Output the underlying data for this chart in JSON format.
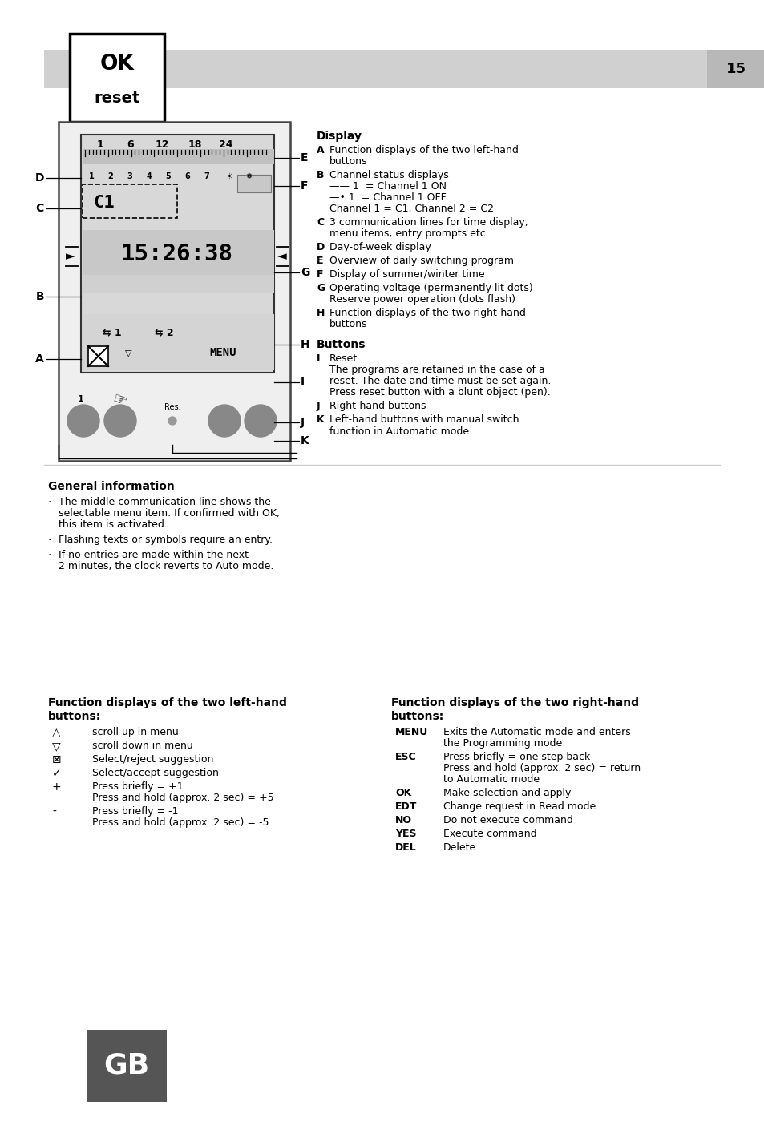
{
  "page_number": "15",
  "bg_color": "#ffffff",
  "header_box_text_line1": "OK",
  "header_box_text_line2": "reset",
  "header_bar_color": "#d0d0d0",
  "gb_box_color": "#555555",
  "gb_text": "GB",
  "display_section": {
    "numbers_top": [
      "1",
      "6",
      "12",
      "18",
      "24"
    ],
    "day_labels": [
      "1",
      "2",
      "3",
      "4",
      "5",
      "6",
      "7"
    ],
    "sun_symbol": "☀",
    "snow_symbol": "*",
    "channel": "C1",
    "time": "15:26:38",
    "menu_text": "MENU",
    "res_label": "Res."
  },
  "display_items": [
    [
      "A",
      "Function displays of the two left-hand\nbuttons"
    ],
    [
      "B",
      "Channel status displays\n—— 1  = Channel 1 ON\n—• 1  = Channel 1 OFF\nChannel 1 = C1, Channel 2 = C2"
    ],
    [
      "C",
      "3 communication lines for time display,\nmenu items, entry prompts etc."
    ],
    [
      "D",
      "Day-of-week display"
    ],
    [
      "E",
      "Overview of daily switching program"
    ],
    [
      "F",
      "Display of summer/winter time"
    ],
    [
      "G",
      "Operating voltage (permanently lit dots)\nReserve power operation (dots flash)"
    ],
    [
      "H",
      "Function displays of the two right-hand\nbuttons"
    ]
  ],
  "buttons_items": [
    [
      "I",
      "Reset",
      "The programs are retained in the case of a\nreset. The date and time must be set again.\nPress reset button with a blunt object (pen)."
    ],
    [
      "J",
      "Right-hand buttons",
      ""
    ],
    [
      "K",
      "Left-hand buttons with manual switch\nfunction in Automatic mode",
      ""
    ]
  ],
  "general_info_title": "General information",
  "general_info_bullets": [
    "The middle communication line shows the\nselectable menu item. If confirmed with OK,\nthis item is activated.",
    "Flashing texts or symbols require an entry.",
    "If no entries are made within the next\n2 minutes, the clock reverts to Auto mode."
  ],
  "left_buttons_title1": "Function displays of the two left-hand",
  "left_buttons_title2": "buttons:",
  "left_buttons_items": [
    [
      "△",
      "scroll up in menu"
    ],
    [
      "▽",
      "scroll down in menu"
    ],
    [
      "⊠",
      "Select/reject suggestion"
    ],
    [
      "✓",
      "Select/accept suggestion"
    ],
    [
      "+",
      "Press briefly = +1\nPress and hold (approx. 2 sec) = +5"
    ],
    [
      "-",
      "Press briefly = -1\nPress and hold (approx. 2 sec) = -5"
    ]
  ],
  "right_buttons_title1": "Function displays of the two right-hand",
  "right_buttons_title2": "buttons:",
  "right_buttons_items": [
    [
      "MENU",
      "Exits the Automatic mode and enters\nthe Programming mode"
    ],
    [
      "ESC",
      "Press briefly = one step back\nPress and hold (approx. 2 sec) = return\nto Automatic mode"
    ],
    [
      "OK",
      "Make selection and apply"
    ],
    [
      "EDT",
      "Change request in Read mode"
    ],
    [
      "NO",
      "Do not execute command"
    ],
    [
      "YES",
      "Execute command"
    ],
    [
      "DEL",
      "Delete"
    ]
  ]
}
